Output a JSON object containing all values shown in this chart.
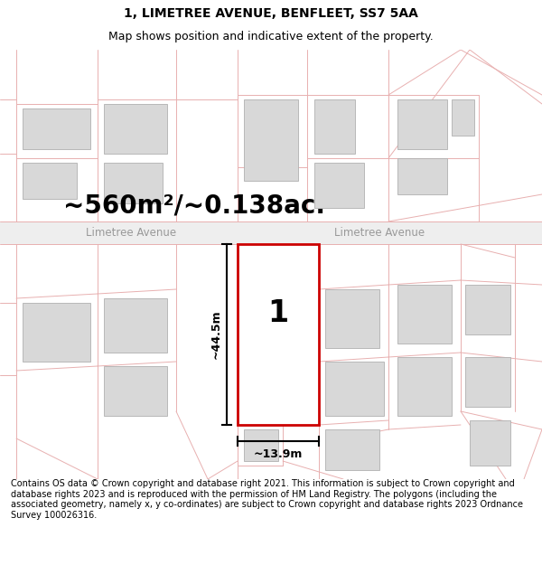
{
  "title": "1, LIMETREE AVENUE, BENFLEET, SS7 5AA",
  "subtitle": "Map shows position and indicative extent of the property.",
  "area_text": "~560m²/~0.138ac.",
  "road_label_left": "Limetree Avenue",
  "road_label_right": "Limetree Avenue",
  "width_label": "~13.9m",
  "height_label": "~44.5m",
  "plot_number": "1",
  "copyright_text": "Contains OS data © Crown copyright and database right 2021. This information is subject to Crown copyright and database rights 2023 and is reproduced with the permission of HM Land Registry. The polygons (including the associated geometry, namely x, y co-ordinates) are subject to Crown copyright and database rights 2023 Ordnance Survey 100026316.",
  "bg_color": "#ffffff",
  "map_bg": "#ffffff",
  "building_fill": "#d8d8d8",
  "building_edge": "#b0b0b0",
  "highlight_color": "#cc0000",
  "road_line_color": "#e8b0b0",
  "plot_line_color": "#f0b0b0",
  "dim_line_color": "#000000",
  "text_color": "#000000",
  "road_text_color": "#999999",
  "title_fontsize": 10,
  "subtitle_fontsize": 9,
  "area_fontsize": 20,
  "road_fontsize": 8.5,
  "dim_fontsize": 9,
  "plot_num_fontsize": 24,
  "copyright_fontsize": 7
}
